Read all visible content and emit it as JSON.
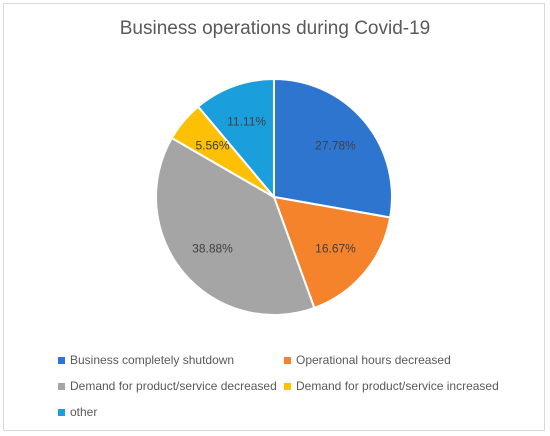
{
  "chart_data": {
    "type": "pie",
    "title": "Business operations during Covid-19",
    "categories": [
      "Business completely shutdown",
      "Operational hours decreased",
      "Demand for product/service decreased",
      "Demand for product/service increased",
      "other"
    ],
    "values": [
      27.78,
      16.67,
      38.88,
      5.56,
      11.11
    ],
    "data_labels": [
      "27.78%",
      "16.67%",
      "38.88%",
      "5.56%",
      "11.11%"
    ],
    "colors": [
      "#2e75d0",
      "#f5832b",
      "#a5a5a5",
      "#fdc005",
      "#1b9fdc"
    ],
    "start_angle_deg": 0,
    "direction": "clockwise",
    "legend_position": "bottom"
  }
}
